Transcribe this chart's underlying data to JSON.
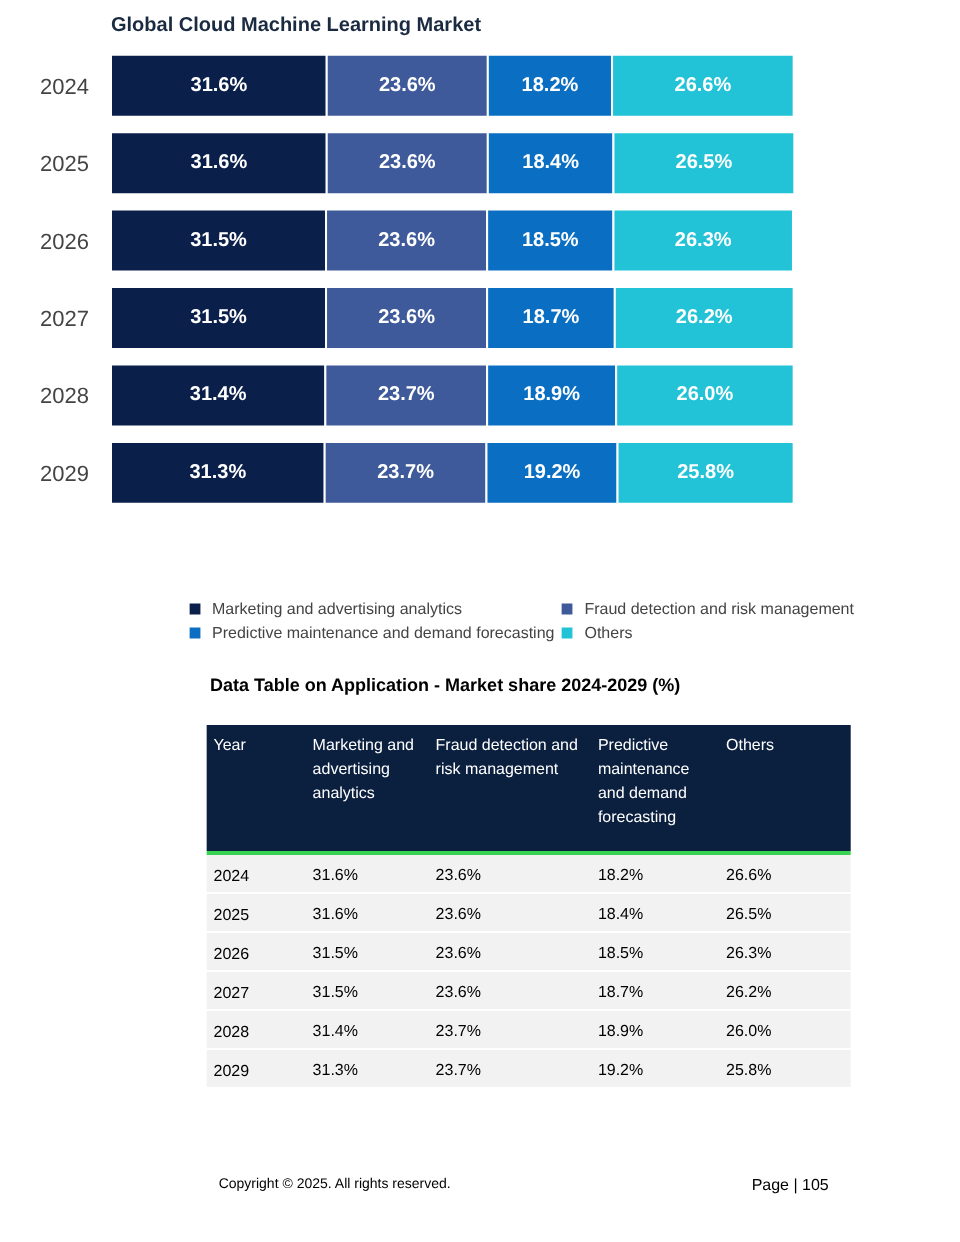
{
  "chart_data": {
    "type": "bar",
    "orientation": "horizontal",
    "stacked": true,
    "title": "Global Cloud Machine Learning Market",
    "categories": [
      "2024",
      "2025",
      "2026",
      "2027",
      "2028",
      "2029"
    ],
    "series": [
      {
        "name": "Marketing and advertising analytics",
        "color": "#0b1f4b",
        "values": [
          31.6,
          31.6,
          31.5,
          31.5,
          31.4,
          31.3
        ],
        "value_labels": [
          "31.6%",
          "31.6%",
          "31.5%",
          "31.5%",
          "31.4%",
          "31.3%"
        ]
      },
      {
        "name": "Fraud detection and risk management",
        "color": "#3f5a9a",
        "values": [
          23.6,
          23.6,
          23.6,
          23.6,
          23.7,
          23.7
        ],
        "value_labels": [
          "23.6%",
          "23.6%",
          "23.6%",
          "23.6%",
          "23.7%",
          "23.7%"
        ]
      },
      {
        "name": "Predictive maintenance and demand forecasting",
        "color": "#0a6fc2",
        "values": [
          18.2,
          18.4,
          18.5,
          18.7,
          18.9,
          19.2
        ],
        "value_labels": [
          "18.2%",
          "18.4%",
          "18.5%",
          "18.7%",
          "18.9%",
          "19.2%"
        ]
      },
      {
        "name": "Others",
        "color": "#22c3d6",
        "values": [
          26.6,
          26.5,
          26.3,
          26.2,
          26.0,
          25.8
        ],
        "value_labels": [
          "26.6%",
          "26.5%",
          "26.3%",
          "26.2%",
          "26.0%",
          "25.8%"
        ]
      }
    ],
    "legend": "bottom",
    "grid": false,
    "tick_labels": "y",
    "annotations": [
      "Data Table on Application - Market share 2024-2029 (%)",
      "Year",
      "Copyright © 2025. All rights reserved.",
      "Page | 105"
    ]
  }
}
